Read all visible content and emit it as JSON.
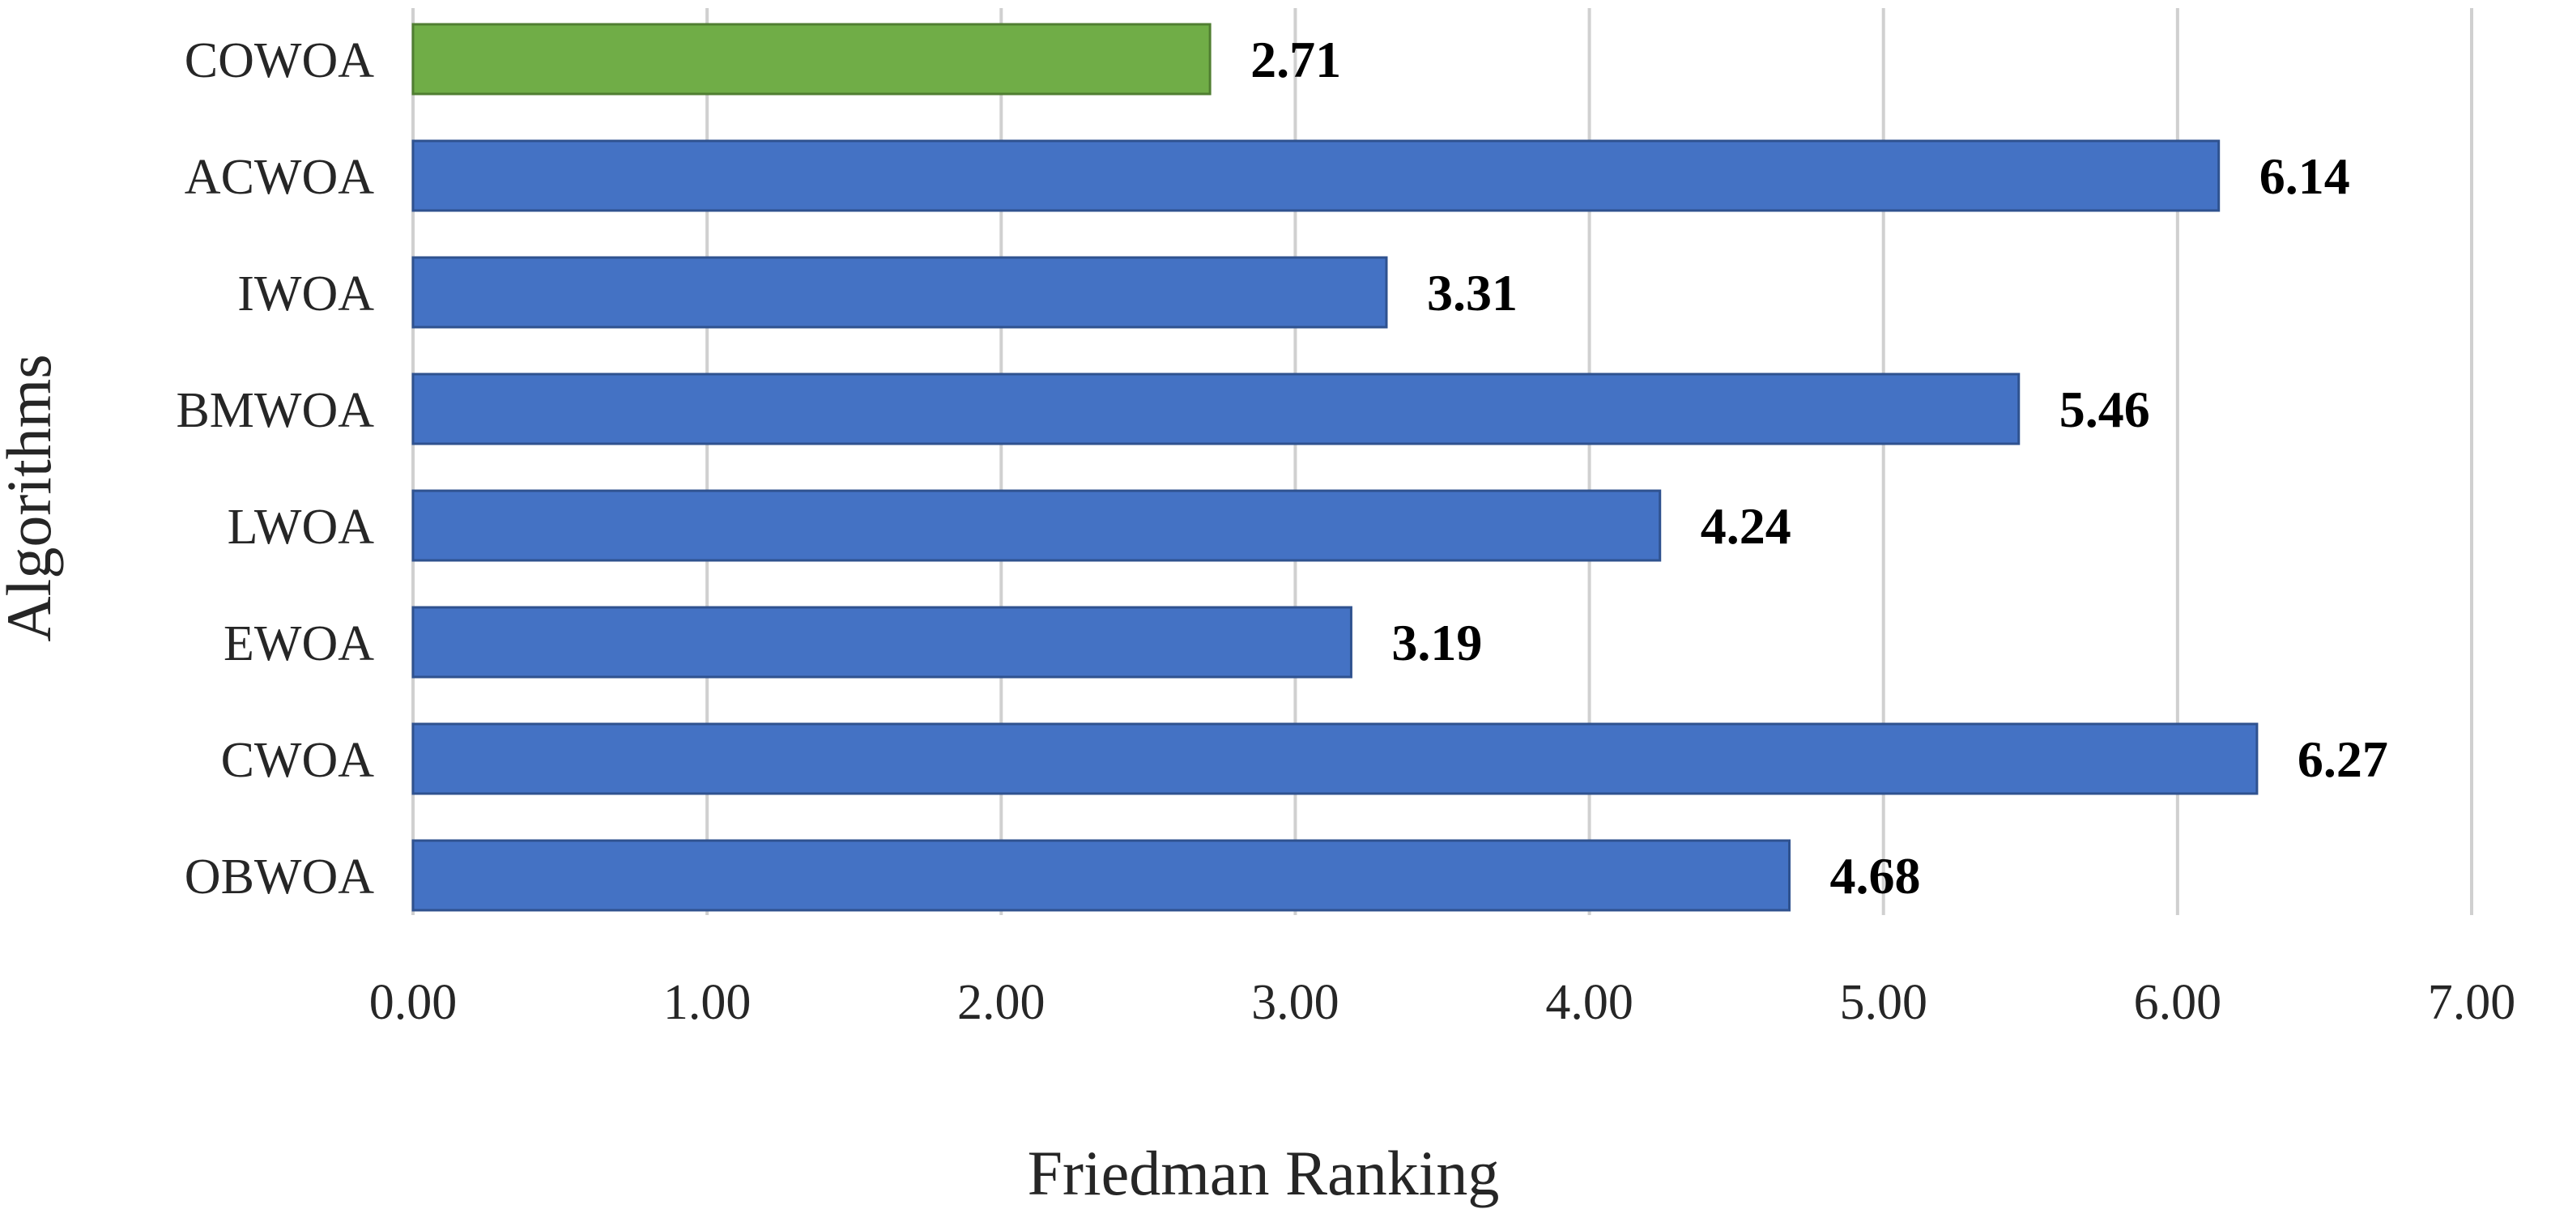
{
  "chart_data": {
    "type": "bar",
    "orientation": "horizontal",
    "categories": [
      "COWOA",
      "ACWOA",
      "IWOA",
      "BMWOA",
      "LWOA",
      "EWOA",
      "CWOA",
      "OBWOA"
    ],
    "values": [
      2.71,
      6.14,
      3.31,
      5.46,
      4.24,
      3.19,
      6.27,
      4.68
    ],
    "data_labels": [
      "2.71",
      "6.14",
      "3.31",
      "5.46",
      "4.24",
      "3.19",
      "6.27",
      "4.68"
    ],
    "xlabel": "Friedman Ranking",
    "ylabel": "Algorithms",
    "xlim": [
      0,
      7
    ],
    "xticks": [
      0,
      1,
      2,
      3,
      4,
      5,
      6,
      7
    ],
    "xtick_labels": [
      "0.00",
      "1.00",
      "2.00",
      "3.00",
      "4.00",
      "5.00",
      "6.00",
      "7.00"
    ],
    "grid": "vertical",
    "legend": "none",
    "colors": {
      "highlight": "#70ad47",
      "highlight_border": "#507e32",
      "default": "#4472c4",
      "default_border": "#2f528f",
      "grid": "#d0d0d0"
    },
    "highlight_category": "COWOA"
  }
}
